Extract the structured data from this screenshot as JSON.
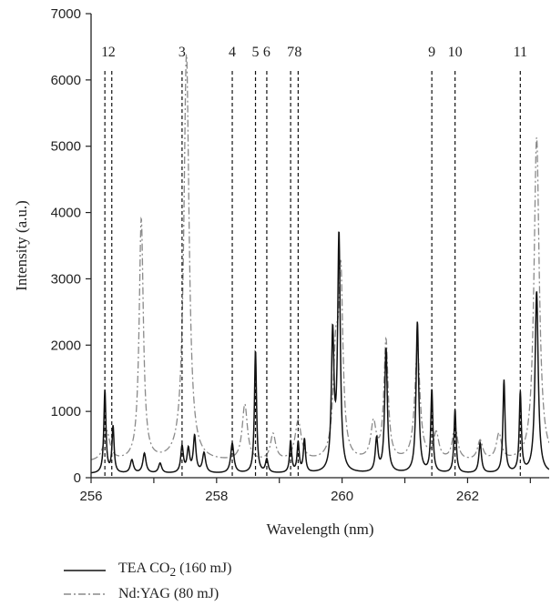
{
  "chart_data": {
    "type": "line",
    "xlabel": "Wavelength (nm)",
    "ylabel": "Intensity (a.u.)",
    "xlim": [
      256,
      263.3
    ],
    "ylim": [
      0,
      7000
    ],
    "xticks": [
      "256",
      "258",
      "260",
      "262"
    ],
    "yticks": [
      "0",
      "1000",
      "2000",
      "3000",
      "4000",
      "5000",
      "6000",
      "7000"
    ],
    "grid": false,
    "legend_position": "bottom-left, below plot",
    "line_markers": [
      {
        "label": "1",
        "x": 256.22
      },
      {
        "label": "2",
        "x": 256.33
      },
      {
        "label": "3",
        "x": 257.45
      },
      {
        "label": "4",
        "x": 258.25
      },
      {
        "label": "5",
        "x": 258.62
      },
      {
        "label": "6",
        "x": 258.8
      },
      {
        "label": "7",
        "x": 259.18
      },
      {
        "label": "8",
        "x": 259.3
      },
      {
        "label": "9",
        "x": 261.43
      },
      {
        "label": "10",
        "x": 261.8
      },
      {
        "label": "11",
        "x": 262.84
      }
    ],
    "series": [
      {
        "name": "TEA CO",
        "name_subscript": "2",
        "name_suffix": " (160 mJ)",
        "style": "solid",
        "color": "#111111",
        "baseline": 60,
        "peaks": [
          [
            256.22,
            1250,
            0.02
          ],
          [
            256.35,
            700,
            0.02
          ],
          [
            256.65,
            200,
            0.03
          ],
          [
            256.85,
            300,
            0.03
          ],
          [
            257.1,
            150,
            0.03
          ],
          [
            257.45,
            400,
            0.025
          ],
          [
            257.55,
            350,
            0.025
          ],
          [
            257.65,
            550,
            0.025
          ],
          [
            257.8,
            300,
            0.03
          ],
          [
            258.25,
            450,
            0.03
          ],
          [
            258.62,
            1850,
            0.02
          ],
          [
            258.8,
            200,
            0.025
          ],
          [
            259.18,
            480,
            0.02
          ],
          [
            259.3,
            450,
            0.02
          ],
          [
            259.4,
            500,
            0.02
          ],
          [
            259.85,
            2050,
            0.025
          ],
          [
            259.95,
            3550,
            0.025
          ],
          [
            260.55,
            500,
            0.025
          ],
          [
            260.7,
            1880,
            0.025
          ],
          [
            261.2,
            2280,
            0.025
          ],
          [
            261.43,
            1250,
            0.02
          ],
          [
            261.8,
            960,
            0.02
          ],
          [
            262.2,
            450,
            0.025
          ],
          [
            262.58,
            1400,
            0.02
          ],
          [
            262.84,
            1200,
            0.02
          ],
          [
            263.1,
            2750,
            0.03
          ]
        ]
      },
      {
        "name": "Nd:YAG",
        "name_suffix": " (80 mJ)",
        "style": "dash-dot",
        "color": "#8a8a8a",
        "baseline": 230,
        "peaks": [
          [
            256.25,
            450,
            0.06
          ],
          [
            256.8,
            3650,
            0.04
          ],
          [
            257.52,
            6150,
            0.05
          ],
          [
            258.45,
            850,
            0.05
          ],
          [
            258.9,
            400,
            0.05
          ],
          [
            259.3,
            600,
            0.06
          ],
          [
            259.9,
            1500,
            0.05
          ],
          [
            259.98,
            2600,
            0.04
          ],
          [
            260.5,
            550,
            0.05
          ],
          [
            260.7,
            1800,
            0.04
          ],
          [
            261.2,
            1700,
            0.05
          ],
          [
            261.5,
            400,
            0.05
          ],
          [
            261.8,
            500,
            0.05
          ],
          [
            262.2,
            300,
            0.05
          ],
          [
            262.5,
            400,
            0.05
          ],
          [
            263.1,
            4900,
            0.05
          ]
        ]
      }
    ]
  }
}
